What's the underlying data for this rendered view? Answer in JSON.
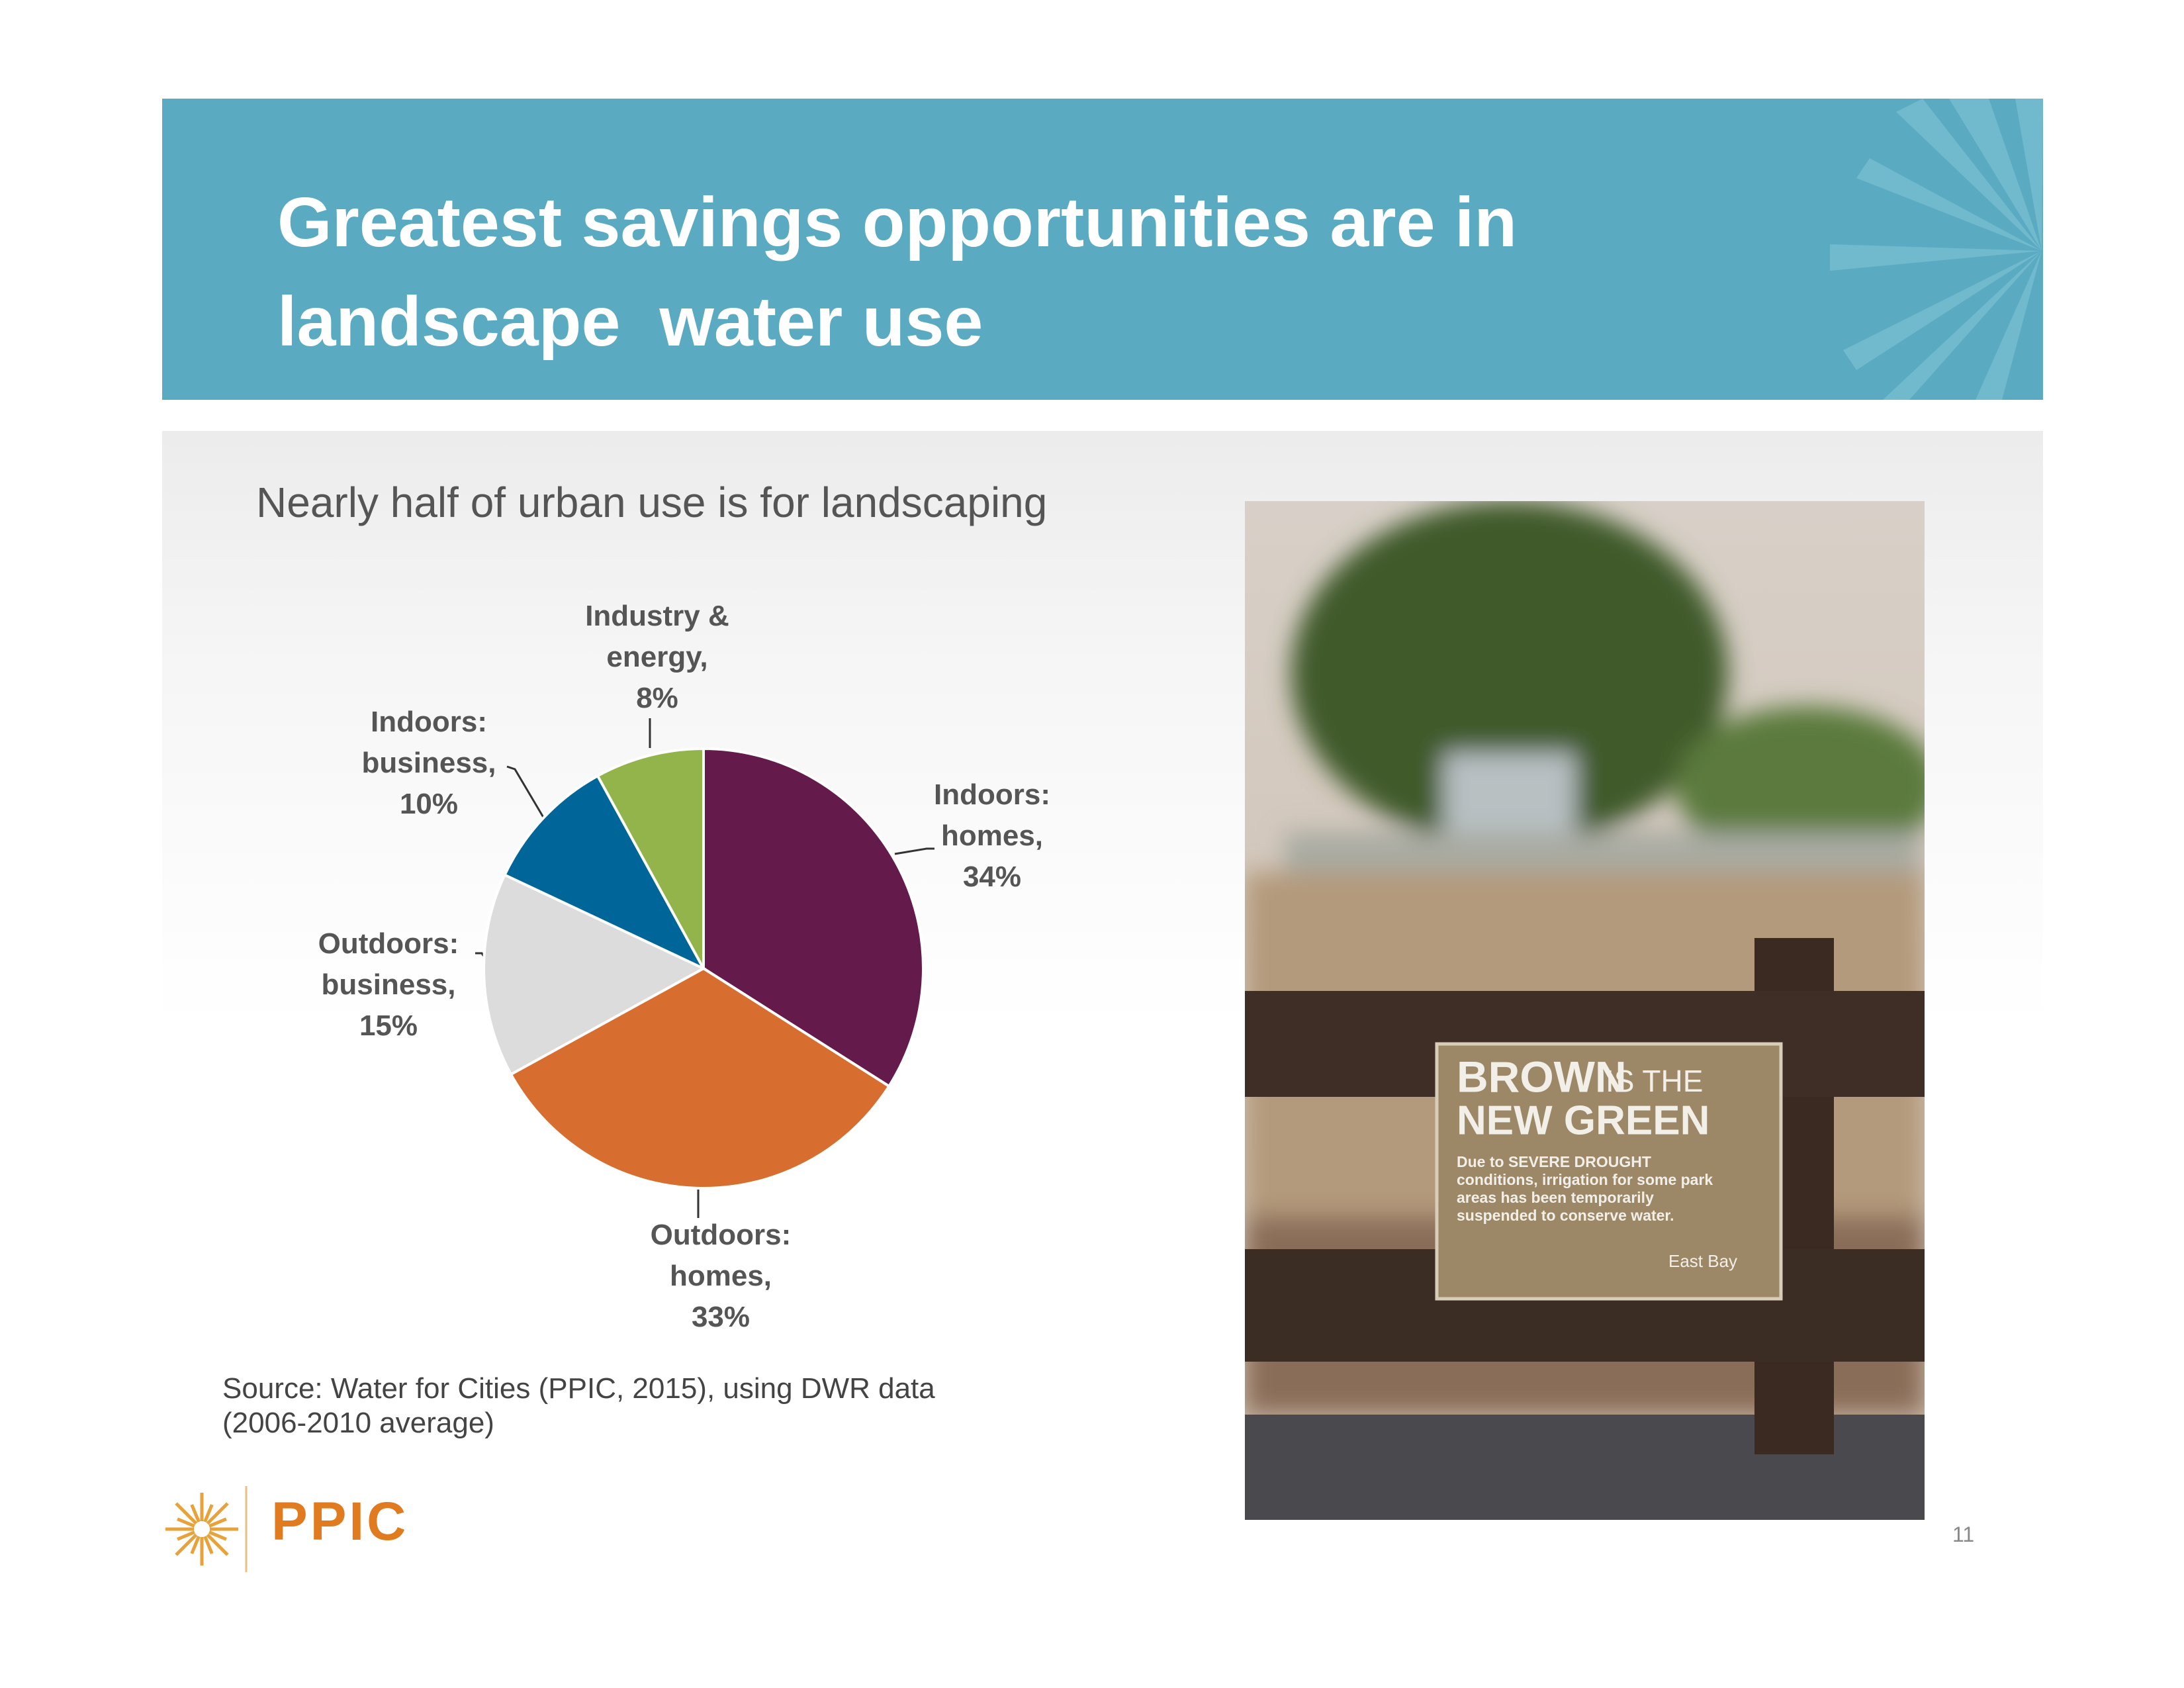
{
  "header": {
    "title": "Greatest savings opportunities are in landscape  water use"
  },
  "chart_data": {
    "type": "pie",
    "subtitle": "Nearly half of urban use is for landscaping",
    "categories": [
      "Indoors: homes,",
      "Outdoors: homes,",
      "Outdoors: business,",
      "Indoors: business,",
      "Industry & energy,"
    ],
    "values": [
      34,
      33,
      15,
      10,
      8
    ],
    "value_labels": [
      "34%",
      "33%",
      "15%",
      "10%",
      "8%"
    ],
    "colors": [
      "#641b4b",
      "#d76d2e",
      "#dcdcdc",
      "#006699",
      "#92b44a"
    ]
  },
  "source": "Source: Water for Cities (PPIC, 2015), using DWR data (2006-2010 average)",
  "photo": {
    "sign_line_1a": "BROWN",
    "sign_line_1b": "IS THE",
    "sign_line_2": "NEW GREEN",
    "sign_body": "Due to SEVERE DROUGHT conditions, irrigation for some park areas has been temporarily suspended to conserve water.",
    "sign_credit": "East Bay"
  },
  "logo": "PPIC",
  "page_number": "11"
}
